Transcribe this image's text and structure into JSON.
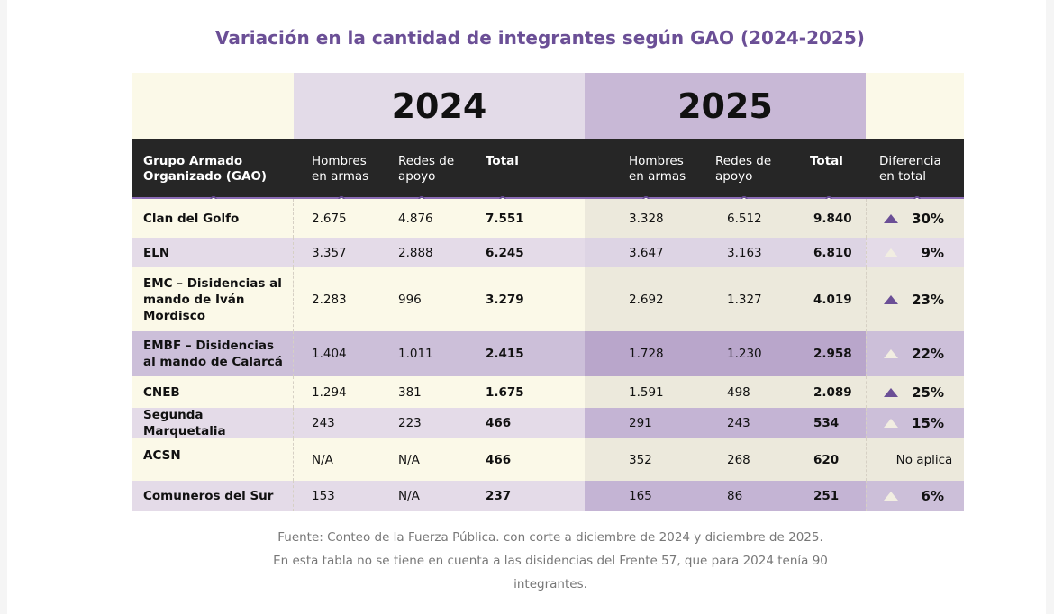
{
  "title": "Variación en la cantidad de integrantes según GAO (2024-2025)",
  "years": {
    "y2024": "2024",
    "y2025": "2025"
  },
  "headers": {
    "group": "Grupo Armado Organizado (GAO)",
    "hombres_2024": "Hombres en armas",
    "redes_2024": "Redes de apoyo",
    "total_2024": "Total",
    "hombres_2025": "Hombres en armas",
    "redes_2025": "Redes de apoyo",
    "total_2025": "Total",
    "diferencia": "Diferencia en total"
  },
  "rows": [
    {
      "name": "Clan del Golfo",
      "h24": "2.675",
      "r24": "4.876",
      "t24": "7.551",
      "h25": "3.328",
      "r25": "6.512",
      "t25": "9.840",
      "diff": "30%",
      "arrow": "dark"
    },
    {
      "name": "ELN",
      "h24": "3.357",
      "r24": "2.888",
      "t24": "6.245",
      "h25": "3.647",
      "r25": "3.163",
      "t25": "6.810",
      "diff": "9%",
      "arrow": "light"
    },
    {
      "name": "EMC – Disidencias al mando de Iván Mordisco",
      "h24": "2.283",
      "r24": "996",
      "t24": "3.279",
      "h25": "2.692",
      "r25": "1.327",
      "t25": "4.019",
      "diff": "23%",
      "arrow": "dark"
    },
    {
      "name": "EMBF – Disidencias al mando de Calarcá",
      "h24": "1.404",
      "r24": "1.011",
      "t24": "2.415",
      "h25": "1.728",
      "r25": "1.230",
      "t25": "2.958",
      "diff": "22%",
      "arrow": "light"
    },
    {
      "name": "CNEB",
      "h24": "1.294",
      "r24": "381",
      "t24": "1.675",
      "h25": "1.591",
      "r25": "498",
      "t25": "2.089",
      "diff": "25%",
      "arrow": "dark"
    },
    {
      "name": "Segunda Marquetalia",
      "h24": "243",
      "r24": "223",
      "t24": "466",
      "h25": "291",
      "r25": "243",
      "t25": "534",
      "diff": "15%",
      "arrow": "light"
    },
    {
      "name": "ACSN",
      "h24": "N/A",
      "r24": "N/A",
      "t24": "466",
      "h25": "352",
      "r25": "268",
      "t25": "620",
      "diff": "No aplica",
      "arrow": "none"
    },
    {
      "name": "Comuneros del Sur",
      "h24": "153",
      "r24": "N/A",
      "t24": "237",
      "h25": "165",
      "r25": "86",
      "t25": "251",
      "diff": "6%",
      "arrow": "light"
    }
  ],
  "footer": "Fuente: Conteo de la Fuerza Pública. con corte a diciembre de 2024 y diciembre de 2025. En esta tabla no se tiene en cuenta a las disidencias del Frente 57, que para 2024 tenía 90 integrantes.",
  "colors": {
    "accent": "#6b4f96",
    "header_bg": "#262626",
    "cream": "#fbf9e8",
    "lavender": "#e4dbe8",
    "purple_light": "#ccbfd9",
    "purple_mid": "#c4b4d4"
  }
}
